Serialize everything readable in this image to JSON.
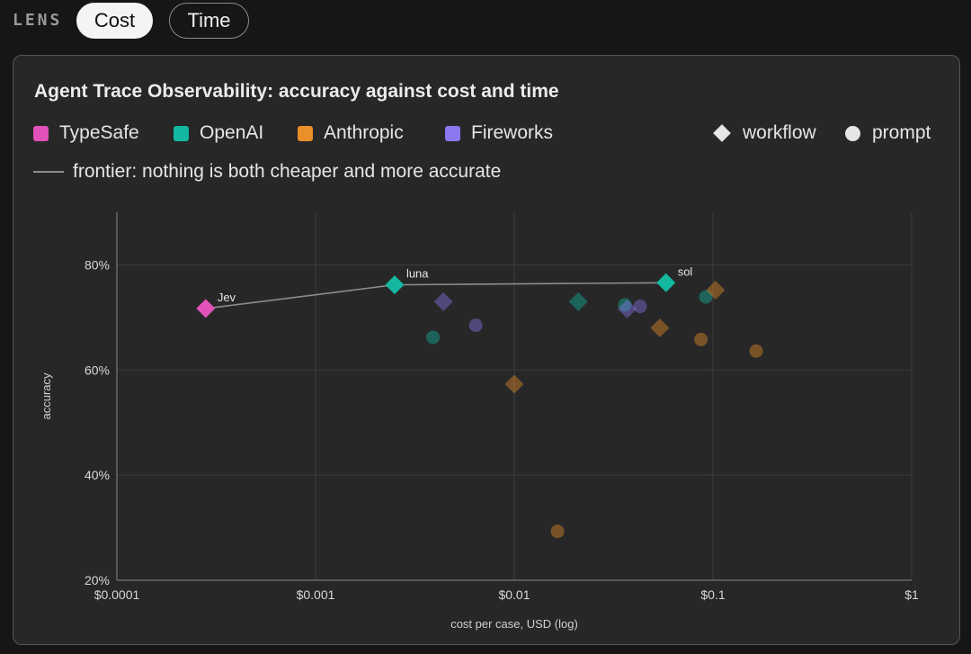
{
  "lens": {
    "label": "LENS",
    "options": [
      "Cost",
      "Time"
    ],
    "active": "Cost"
  },
  "chart_data": {
    "type": "scatter",
    "title": "Agent Trace Observability: accuracy against cost and time",
    "xlabel": "cost per case, USD (log)",
    "ylabel": "accuracy",
    "xscale": "log",
    "xlim": [
      0.0001,
      1
    ],
    "ylim": [
      20,
      90
    ],
    "grid": true,
    "xticks": [
      {
        "value": 0.0001,
        "label": "$0.0001"
      },
      {
        "value": 0.001,
        "label": "$0.001"
      },
      {
        "value": 0.01,
        "label": "$0.01"
      },
      {
        "value": 0.1,
        "label": "$0.1"
      },
      {
        "value": 1,
        "label": "$1"
      }
    ],
    "yticks": [
      {
        "value": 20,
        "label": "20%"
      },
      {
        "value": 40,
        "label": "40%"
      },
      {
        "value": 60,
        "label": "60%"
      },
      {
        "value": 80,
        "label": "80%"
      }
    ],
    "legend": {
      "placement": "top",
      "providers": [
        {
          "name": "TypeSafe",
          "color": "#e052b8"
        },
        {
          "name": "OpenAI",
          "color": "#14b8a0"
        },
        {
          "name": "Anthropic",
          "color": "#eb8f2a"
        },
        {
          "name": "Fireworks",
          "color": "#8b78f0"
        }
      ],
      "shapes": [
        {
          "name": "workflow",
          "shape": "diamond"
        },
        {
          "name": "prompt",
          "shape": "circle"
        }
      ],
      "frontier_label": "frontier: nothing is both cheaper and more accurate"
    },
    "frontier": [
      {
        "x": 0.00028,
        "y": 71.7
      },
      {
        "x": 0.0025,
        "y": 76.2
      },
      {
        "x": 0.058,
        "y": 76.6
      }
    ],
    "points": [
      {
        "provider": "TypeSafe",
        "shape": "diamond",
        "x": 0.00028,
        "y": 71.7,
        "frontier": true,
        "label": "Jev"
      },
      {
        "provider": "OpenAI",
        "shape": "diamond",
        "x": 0.0025,
        "y": 76.2,
        "frontier": true,
        "label": "luna"
      },
      {
        "provider": "OpenAI",
        "shape": "diamond",
        "x": 0.058,
        "y": 76.6,
        "frontier": true,
        "label": "sol"
      },
      {
        "provider": "OpenAI",
        "shape": "circle",
        "x": 0.0039,
        "y": 66.2
      },
      {
        "provider": "OpenAI",
        "shape": "diamond",
        "x": 0.021,
        "y": 73.0
      },
      {
        "provider": "OpenAI",
        "shape": "circle",
        "x": 0.036,
        "y": 72.4
      },
      {
        "provider": "OpenAI",
        "shape": "circle",
        "x": 0.092,
        "y": 73.9
      },
      {
        "provider": "Fireworks",
        "shape": "diamond",
        "x": 0.0044,
        "y": 73.0
      },
      {
        "provider": "Fireworks",
        "shape": "circle",
        "x": 0.0064,
        "y": 68.5
      },
      {
        "provider": "Fireworks",
        "shape": "diamond",
        "x": 0.037,
        "y": 71.6
      },
      {
        "provider": "Fireworks",
        "shape": "circle",
        "x": 0.043,
        "y": 72.1
      },
      {
        "provider": "Anthropic",
        "shape": "diamond",
        "x": 0.01,
        "y": 57.3
      },
      {
        "provider": "Anthropic",
        "shape": "circle",
        "x": 0.0165,
        "y": 29.3
      },
      {
        "provider": "Anthropic",
        "shape": "diamond",
        "x": 0.054,
        "y": 68.0
      },
      {
        "provider": "Anthropic",
        "shape": "circle",
        "x": 0.087,
        "y": 65.8
      },
      {
        "provider": "Anthropic",
        "shape": "diamond",
        "x": 0.103,
        "y": 75.2
      },
      {
        "provider": "Anthropic",
        "shape": "circle",
        "x": 0.165,
        "y": 63.6
      }
    ]
  }
}
